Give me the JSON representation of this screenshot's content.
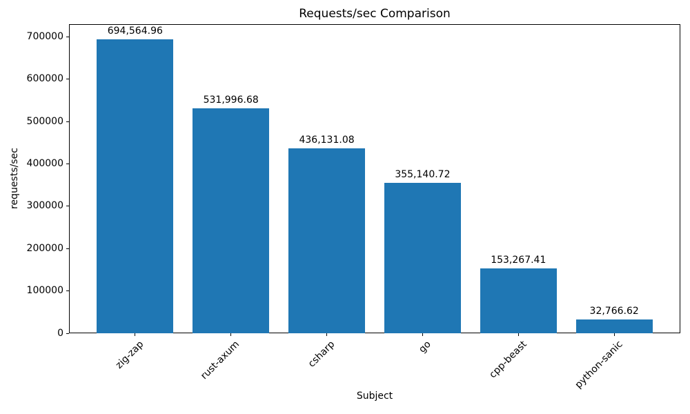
{
  "chart_data": {
    "type": "bar",
    "title": "Requests/sec Comparison",
    "xlabel": "Subject",
    "ylabel": "requests/sec",
    "categories": [
      "zig-zap",
      "rust-axum",
      "csharp",
      "go",
      "cpp-beast",
      "python-sanic"
    ],
    "values": [
      694564.96,
      531996.68,
      436131.08,
      355140.72,
      153267.41,
      32766.62
    ],
    "value_labels": [
      "694,564.96",
      "531,996.68",
      "436,131.08",
      "355,140.72",
      "153,267.41",
      "32,766.62"
    ],
    "ylim": [
      0,
      730000
    ],
    "yticks": [
      0,
      100000,
      200000,
      300000,
      400000,
      500000,
      600000,
      700000
    ],
    "ytick_labels": [
      "0",
      "100000",
      "200000",
      "300000",
      "400000",
      "500000",
      "600000",
      "700000"
    ],
    "bar_color": "#1f77b4",
    "grid": false,
    "legend": null
  }
}
